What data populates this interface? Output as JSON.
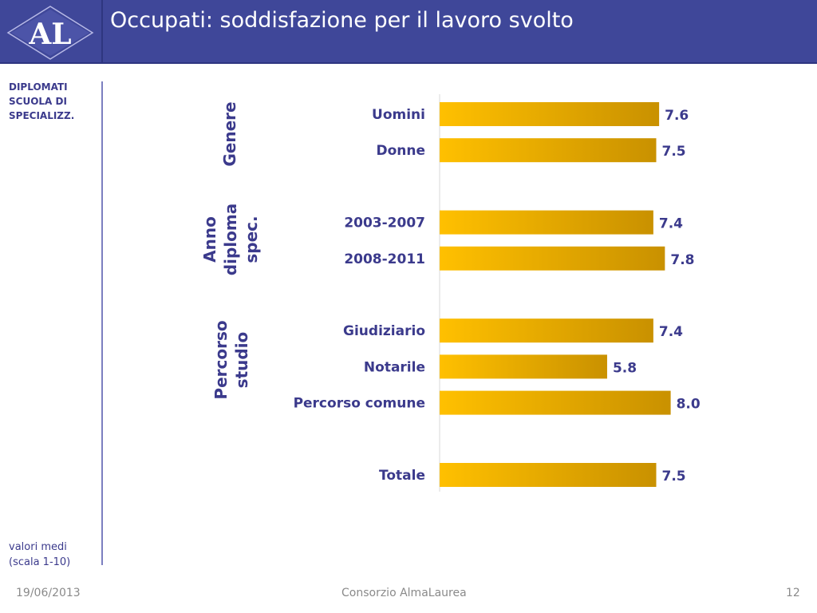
{
  "header": {
    "logo_text": "AL",
    "title": "Occupati: soddisfazione per il lavoro svolto"
  },
  "sidebar": {
    "label": "DIPLOMATI SCUOLA DI SPECIALIZZ.",
    "note": "valori medi (scala 1-10)"
  },
  "footer": {
    "date": "19/06/2013",
    "organization": "Consorzio AlmaLaurea",
    "page_number": "12"
  },
  "colors": {
    "header_bg": "#3f4799",
    "text": "#3b3a8c",
    "bar_light": "#ffc000",
    "bar_dark": "#c99100"
  },
  "chart_data": {
    "type": "bar",
    "orientation": "horizontal",
    "xlim": [
      0,
      10
    ],
    "groups": [
      {
        "name": [
          "Genere"
        ],
        "categories": [
          "Uomini",
          "Donne"
        ],
        "values": [
          7.6,
          7.5
        ],
        "value_labels": [
          "7.6",
          "7.5"
        ]
      },
      {
        "name": [
          "Anno",
          "diploma",
          "spec."
        ],
        "categories": [
          "2003-2007",
          "2008-2011"
        ],
        "values": [
          7.4,
          7.8
        ],
        "value_labels": [
          "7.4",
          "7.8"
        ]
      },
      {
        "name": [
          "Percorso",
          "studio"
        ],
        "categories": [
          "Giudiziario",
          "Notarile",
          "Percorso comune"
        ],
        "values": [
          7.4,
          5.8,
          8.0
        ],
        "value_labels": [
          "7.4",
          "5.8",
          "8.0"
        ]
      },
      {
        "name": [],
        "categories": [
          "Totale"
        ],
        "values": [
          7.5
        ],
        "value_labels": [
          "7.5"
        ]
      }
    ]
  }
}
